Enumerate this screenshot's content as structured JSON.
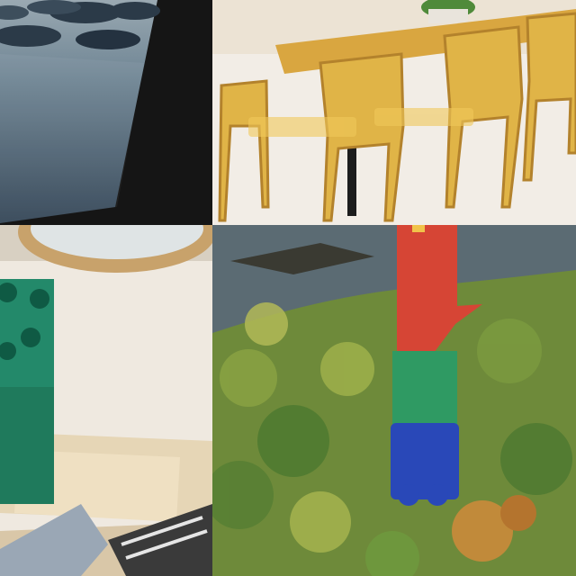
{
  "collage": {
    "tiles": [
      {
        "subject": "lake-with-stones",
        "palette": [
          "#6f8594",
          "#2b3a48",
          "#1a1a1a"
        ]
      },
      {
        "subject": "wooden-chairs-and-table",
        "palette": [
          "#e1b84b",
          "#c7963a",
          "#f2ede6"
        ]
      },
      {
        "subject": "green-toy-brick-tower-room",
        "palette": [
          "#1f7a5c",
          "#efe9e0",
          "#d9c7a8"
        ]
      },
      {
        "subject": "aerial-forest-with-toy-brick-arrow",
        "palette": [
          "#d64535",
          "#2f9a63",
          "#2948b8"
        ]
      }
    ]
  }
}
